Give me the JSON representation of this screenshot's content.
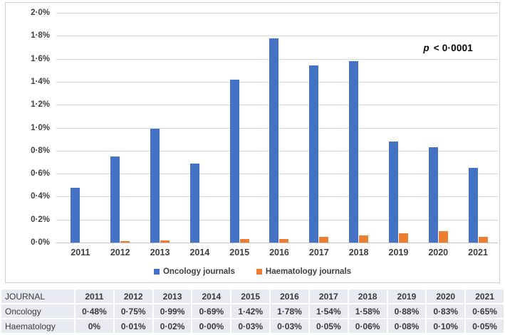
{
  "chart": {
    "p_annotation": {
      "p": "p",
      "rest": " < 0·0001"
    },
    "legend": [
      {
        "label": "Oncology journals",
        "color": "#4472C4"
      },
      {
        "label": "Haematology journals",
        "color": "#ED7D31"
      }
    ]
  },
  "chart_data": {
    "type": "bar",
    "title": "",
    "xlabel": "",
    "ylabel": "",
    "categories": [
      "2011",
      "2012",
      "2013",
      "2014",
      "2015",
      "2016",
      "2017",
      "2018",
      "2019",
      "2020",
      "2021"
    ],
    "series": [
      {
        "name": "Oncology journals",
        "color": "#4472C4",
        "values": [
          0.48,
          0.75,
          0.99,
          0.69,
          1.42,
          1.78,
          1.54,
          1.58,
          0.88,
          0.83,
          0.65
        ]
      },
      {
        "name": "Haematology journals",
        "color": "#ED7D31",
        "values": [
          0,
          0.01,
          0.02,
          0.0,
          0.03,
          0.03,
          0.05,
          0.06,
          0.08,
          0.1,
          0.05
        ]
      }
    ],
    "y_ticks": [
      "2·0%",
      "1·8%",
      "1·6%",
      "1·4%",
      "1·2%",
      "1·0%",
      "0·8%",
      "0·6%",
      "0·4%",
      "0·2%",
      "0·0%"
    ],
    "ylim": [
      0,
      2.0
    ],
    "tick_step": 0.2,
    "grid": true,
    "legend_position": "bottom",
    "annotation": "p < 0·0001"
  },
  "table": {
    "header": [
      "JOURNAL",
      "2011",
      "2012",
      "2013",
      "2014",
      "2015",
      "2016",
      "2017",
      "2018",
      "2019",
      "2020",
      "2021"
    ],
    "rows": [
      {
        "label": "Oncology",
        "values": [
          "0·48%",
          "0·75%",
          "0·99%",
          "0·69%",
          "1·42%",
          "1·78%",
          "1·54%",
          "1·58%",
          "0·88%",
          "0·83%",
          "0·65%"
        ]
      },
      {
        "label": "Haematology",
        "values": [
          "0%",
          "0·01%",
          "0·02%",
          "0·00%",
          "0·03%",
          "0·03%",
          "0·05%",
          "0·06%",
          "0·08%",
          "0·10%",
          "0·05%"
        ]
      }
    ]
  },
  "colors": {
    "oncology_blue": "#4472C4",
    "haematology_orange": "#ED7D31",
    "gridline": "#D9D9D9",
    "axis_line": "#BFBFBF",
    "axis_text": "#404040",
    "table_cell_bg": "#E8EAF2",
    "chart_border": "#D2D2D2"
  }
}
